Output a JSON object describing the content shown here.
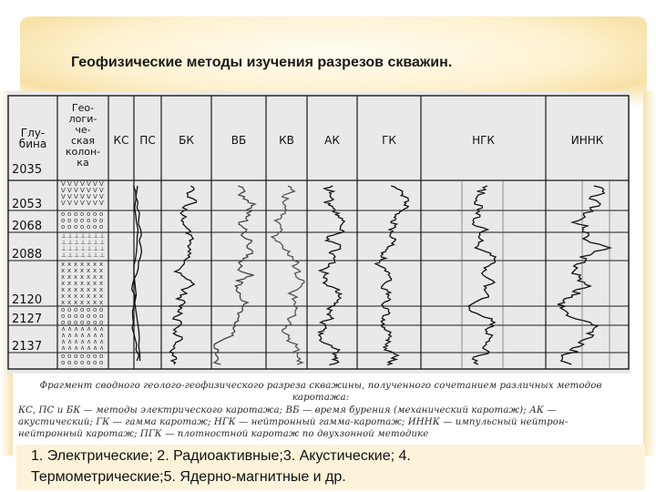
{
  "slide": {
    "title": "Геофизические методы изучения разрезов скважин."
  },
  "figure": {
    "header_depth": "Глу-\nбина",
    "header_geo": "Гео-\nлоги-\nче-\nская\nколон-\nка",
    "columns": [
      "КС",
      "ПС",
      "БК",
      "ВБ",
      "КВ",
      "АК",
      "ГК",
      "НГК",
      "ИННК"
    ],
    "depths": [
      "2035",
      "2053",
      "2068",
      "2088",
      "2120",
      "2127",
      "2137"
    ],
    "caption_lines": [
      "Фрагмент сводного геолого-геофизического разреза скважины, полученного сочетанием различных методов",
      "каротажа:",
      "КС, ПС и БК — методы электрического каротажа; ВБ — время бурения (механический каротаж); АК —",
      "акустический; ГК — гамма каротаж; НГК — нейтронный гамма-каротаж; ИННК — импульсный нейтрон-",
      "нейтронный каротаж; ПГК — плотностной каротаж по двухзонной методике"
    ]
  },
  "footer": {
    "line1": "1. Электрические; 2. Радиоактивные;3. Акустические; 4.",
    "line2": "Термометрические;5. Ядерно-магнитные и др."
  }
}
